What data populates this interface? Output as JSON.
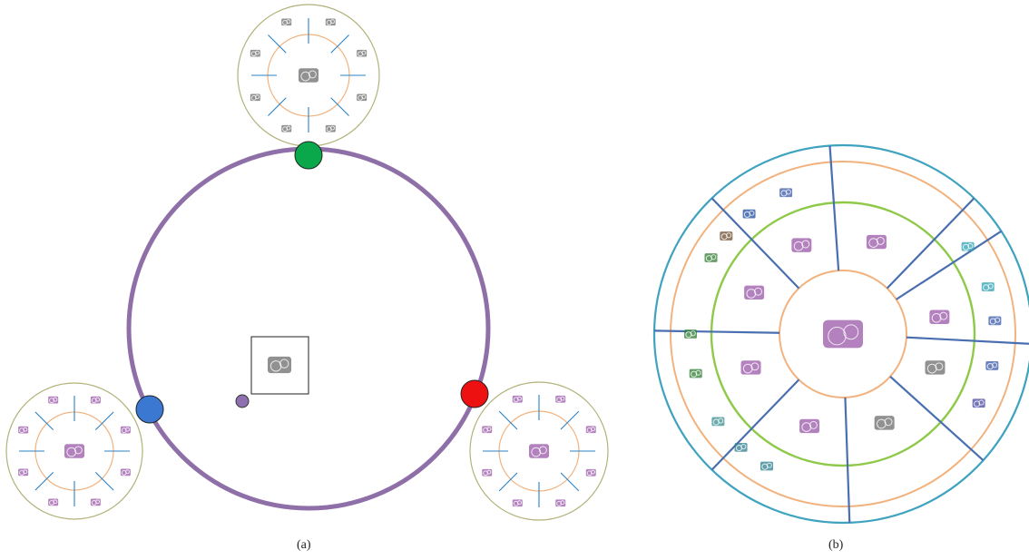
{
  "figure": {
    "captions": {
      "a": "(a)",
      "b": "(b)"
    },
    "colors": {
      "main_ring": "#8e6fa8",
      "orange_ring": "#f2b27e",
      "olive_ring": "#b3b27a",
      "green_ring": "#8fc94a",
      "teal_ring": "#3fa3bf",
      "divider_blue": "#4a6fb0",
      "tick_blue": "#2a82c4",
      "node_green": "#0aa84a",
      "node_blue": "#3a78d2",
      "node_red": "#ee1111",
      "node_purple": "#8e70b0",
      "glyph_gray": "#6c6c6c",
      "glyph_purple": "#9a58a8",
      "glyph_dark": "#3d3d3d"
    }
  }
}
